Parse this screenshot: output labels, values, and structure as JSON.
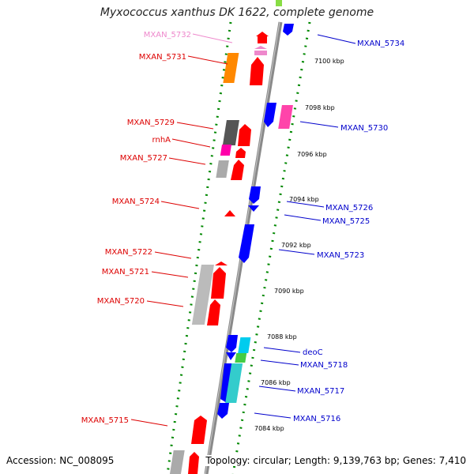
{
  "title": "Myxococcus xanthus DK 1622, complete genome",
  "footer": {
    "accession": "Accession: NC_008095",
    "topology": "Topology: circular; Length: 9,139,763 bp; Genes: 7,410"
  },
  "colors": {
    "forward_label": "#dd0000",
    "reverse_label": "#0000cc",
    "backbone": "#888888",
    "dots": "#008800"
  },
  "scale_ticks": [
    "7100 kbp",
    "7098 kbp",
    "7096 kbp",
    "7094 kbp",
    "7092 kbp",
    "7090 kbp",
    "7088 kbp",
    "7086 kbp",
    "7084 kbp"
  ],
  "left_labels": [
    {
      "text": "MXAN_5732",
      "color": "#ee88cc"
    },
    {
      "text": "MXAN_5731",
      "color": "#dd0000"
    },
    {
      "text": "MXAN_5729",
      "color": "#dd0000"
    },
    {
      "text": "rnhA",
      "color": "#dd0000"
    },
    {
      "text": "MXAN_5727",
      "color": "#dd0000"
    },
    {
      "text": "MXAN_5724",
      "color": "#dd0000"
    },
    {
      "text": "MXAN_5722",
      "color": "#dd0000"
    },
    {
      "text": "MXAN_5721",
      "color": "#dd0000"
    },
    {
      "text": "MXAN_5720",
      "color": "#dd0000"
    },
    {
      "text": "MXAN_5715",
      "color": "#dd0000"
    }
  ],
  "right_labels": [
    {
      "text": "MXAN_5734"
    },
    {
      "text": "MXAN_5730"
    },
    {
      "text": "MXAN_5726"
    },
    {
      "text": "MXAN_5725"
    },
    {
      "text": "MXAN_5723"
    },
    {
      "text": "deoC"
    },
    {
      "text": "MXAN_5718"
    },
    {
      "text": "MXAN_5717"
    },
    {
      "text": "MXAN_5716"
    }
  ]
}
